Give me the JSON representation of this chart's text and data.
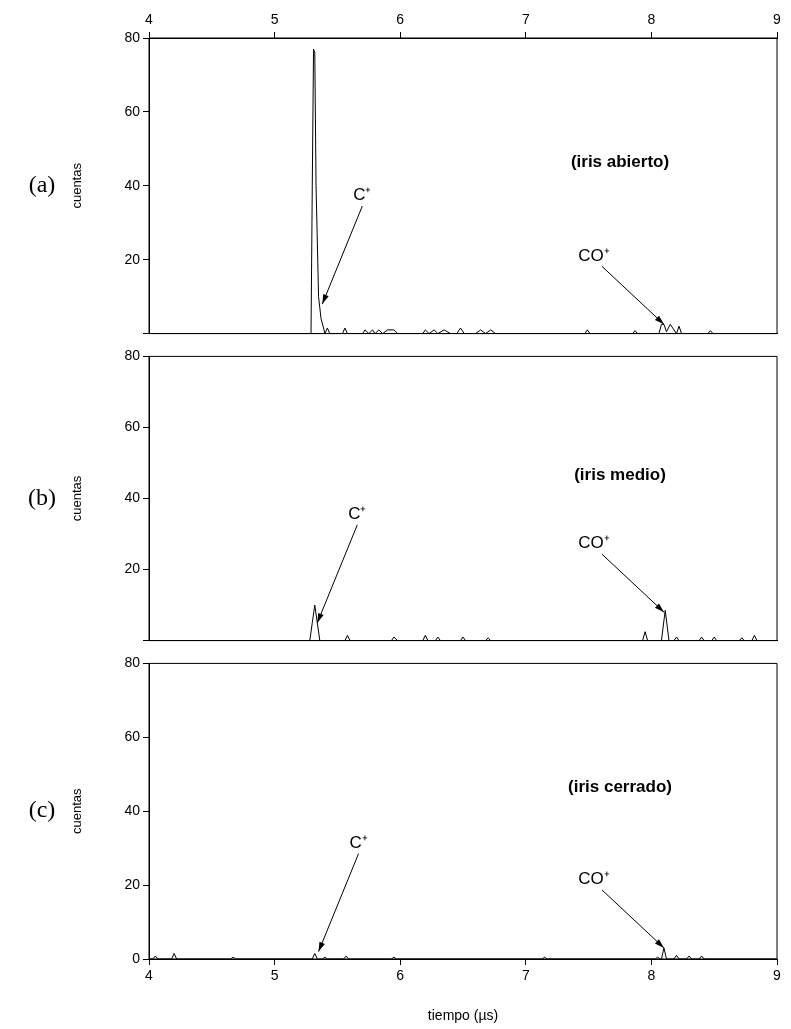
{
  "chart_data": [
    {
      "type": "line",
      "xlim": [
        4,
        9
      ],
      "xticks": [
        4,
        5,
        6,
        7,
        8,
        9
      ],
      "x2lim": [
        4,
        9
      ],
      "x2ticks": [
        4,
        5,
        6,
        7,
        8,
        9
      ],
      "tick_labels": "y",
      "ylim": [
        0,
        80
      ],
      "yticks": [
        {
          "value": 0,
          "label": null
        },
        20,
        40,
        60,
        80
      ],
      "ylabel": "cuentas",
      "grid": false,
      "legend": false,
      "marker": "none",
      "line_style": "solid",
      "annotations": [
        "(a)",
        "(iris abierto)",
        {
          "text": "C⁺",
          "x": 5.38,
          "y": 8
        },
        {
          "text": "CO⁺",
          "x": 8.1,
          "y": 2.5
        }
      ],
      "series": [
        {
          "color": "#000000",
          "x": [
            4,
            5.27,
            5.29,
            5.3,
            5.31,
            5.32,
            5.33,
            5.35,
            5.37,
            5.39,
            5.4,
            5.42,
            5.44,
            5.54,
            5.56,
            5.58,
            5.7,
            5.72,
            5.75,
            5.78,
            5.8,
            5.83,
            5.86,
            5.9,
            5.95,
            5.98,
            6.18,
            6.2,
            6.23,
            6.27,
            6.3,
            6.35,
            6.4,
            6.45,
            6.48,
            6.51,
            6.6,
            6.64,
            6.68,
            6.72,
            6.76,
            6.8,
            7.47,
            7.49,
            7.51,
            7.85,
            7.87,
            7.89,
            8.06,
            8.08,
            8.1,
            8.12,
            8.15,
            8.2,
            8.22,
            8.24,
            8.45,
            8.47,
            8.49,
            9
          ],
          "values": [
            0,
            0,
            0,
            40,
            77,
            76,
            40,
            10,
            4,
            1.5,
            0,
            1.5,
            0,
            0,
            1.5,
            0,
            0,
            1,
            0,
            1,
            0,
            1,
            0,
            1,
            1,
            0,
            0,
            1,
            0,
            1,
            0,
            1,
            0,
            0,
            1.5,
            0,
            0,
            1,
            0,
            1,
            0,
            0,
            0,
            1,
            0,
            0,
            0.8,
            0,
            0,
            2.5,
            2.5,
            0.5,
            2.5,
            0,
            2,
            0,
            0,
            0.8,
            0,
            0
          ]
        }
      ]
    },
    {
      "type": "line",
      "xlim": [
        4,
        9
      ],
      "xticks": [
        4,
        5,
        6,
        7,
        8,
        9
      ],
      "tick_labels": "y",
      "ylim": [
        0,
        80
      ],
      "yticks": [
        {
          "value": 0,
          "label": null
        },
        20,
        40,
        60,
        80
      ],
      "ylabel": "cuentas",
      "grid": false,
      "legend": false,
      "marker": "none",
      "line_style": "solid",
      "annotations": [
        "(b)",
        "(iris medio)",
        {
          "text": "C⁺",
          "x": 5.34,
          "y": 5
        },
        {
          "text": "CO⁺",
          "x": 8.1,
          "y": 8
        }
      ],
      "series": [
        {
          "color": "#000000",
          "x": [
            4,
            5.28,
            5.3,
            5.32,
            5.34,
            5.36,
            5.56,
            5.58,
            5.6,
            5.93,
            5.95,
            5.98,
            6.18,
            6.2,
            6.22,
            6.28,
            6.3,
            6.32,
            6.48,
            6.5,
            6.52,
            6.68,
            6.7,
            6.72,
            7.93,
            7.95,
            7.97,
            8.08,
            8.11,
            8.14,
            8.18,
            8.2,
            8.22,
            8.38,
            8.4,
            8.42,
            8.48,
            8.5,
            8.52,
            8.7,
            8.72,
            8.74,
            8.8,
            8.82,
            8.84,
            9
          ],
          "values": [
            0,
            0,
            5,
            10,
            5,
            0,
            0,
            1.5,
            0,
            0,
            1,
            0,
            0,
            1.5,
            0,
            0,
            1,
            0,
            0,
            1,
            0,
            0,
            0.8,
            0,
            0,
            2.5,
            0,
            0,
            8.5,
            0,
            0,
            1,
            0,
            0,
            1,
            0,
            0,
            1,
            0,
            0,
            0.8,
            0,
            0,
            1.5,
            0,
            0
          ]
        }
      ]
    },
    {
      "type": "line",
      "xlim": [
        4,
        9
      ],
      "xticks": [
        4,
        5,
        6,
        7,
        8,
        9
      ],
      "ylim": [
        0,
        80
      ],
      "yticks": [
        0,
        20,
        40,
        60,
        80
      ],
      "xlabel": "tiempo (µs)",
      "ylabel": "cuentas",
      "grid": false,
      "legend": false,
      "marker": "none",
      "line_style": "solid",
      "annotations": [
        "(c)",
        "(iris cerrado)",
        {
          "text": "C⁺",
          "x": 5.35,
          "y": 2
        },
        {
          "text": "CO⁺",
          "x": 8.1,
          "y": 3
        }
      ],
      "series": [
        {
          "color": "#000000",
          "x": [
            4,
            4.03,
            4.05,
            4.07,
            4.18,
            4.2,
            4.22,
            4.65,
            4.67,
            4.69,
            5.3,
            5.32,
            5.34,
            5.38,
            5.4,
            5.42,
            5.55,
            5.57,
            5.59,
            5.93,
            5.95,
            5.97,
            7.13,
            7.15,
            7.17,
            8.03,
            8.05,
            8.07,
            8.08,
            8.1,
            8.12,
            8.18,
            8.2,
            8.22,
            8.28,
            8.3,
            8.32,
            8.38,
            8.4,
            8.42,
            9
          ],
          "values": [
            0,
            0,
            0.8,
            0,
            0,
            1.5,
            0,
            0,
            0.5,
            0,
            0,
            1.5,
            0,
            0,
            0.5,
            0,
            0,
            0.8,
            0,
            0,
            0.5,
            0,
            0,
            0.5,
            0,
            0,
            0.5,
            0,
            0,
            3,
            0,
            0,
            1,
            0,
            0,
            0.8,
            0,
            0,
            0.8,
            0,
            0
          ]
        }
      ]
    }
  ]
}
